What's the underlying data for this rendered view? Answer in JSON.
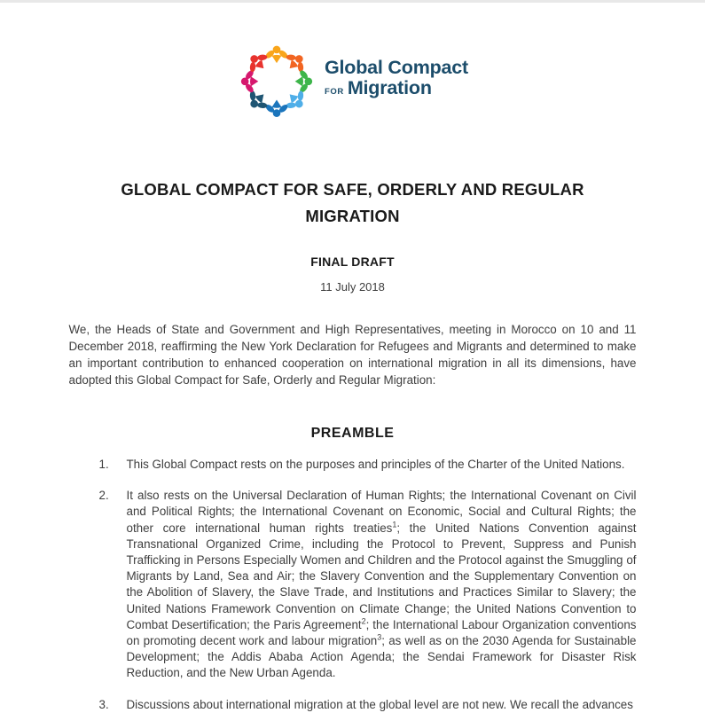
{
  "document": {
    "title_line1": "GLOBAL COMPACT FOR SAFE, ORDERLY AND REGULAR",
    "title_line2": "MIGRATION",
    "subtitle": "FINAL DRAFT",
    "date": "11 July 2018",
    "intro": "We, the Heads of State and Government and High Representatives, meeting in Morocco on 10 and 11 December 2018, reaffirming the New York Declaration for Refugees and Migrants and determined to make an important contribution to enhanced cooperation on international migration in all its dimensions, have adopted this Global Compact for Safe, Orderly and Regular Migration:",
    "section_heading": "PREAMBLE",
    "paragraphs": [
      {
        "number": "1.",
        "segments": [
          {
            "text": "This Global Compact rests on the purposes and principles of the Charter of the United Nations."
          }
        ]
      },
      {
        "number": "2.",
        "segments": [
          {
            "text": "It also rests on the Universal Declaration of Human Rights; the International Covenant on Civil and Political Rights; the International Covenant on Economic, Social and Cultural Rights; the other core international human rights treaties"
          },
          {
            "sup": "1"
          },
          {
            "text": "; the United Nations Convention against Transnational Organized Crime, including the Protocol to Prevent, Suppress and Punish Trafficking in Persons Especially Women and Children and the Protocol against the Smuggling of Migrants by Land, Sea and Air; the Slavery Convention and the Supplementary Convention on the Abolition of Slavery, the Slave Trade, and Institutions and Practices Similar to Slavery; the United Nations Framework Convention on Climate Change; the United Nations Convention to Combat Desertification; the Paris Agreement"
          },
          {
            "sup": "2"
          },
          {
            "text": "; the International Labour Organization conventions on promoting decent work and labour migration"
          },
          {
            "sup": "3"
          },
          {
            "text": "; as well as on the 2030 Agenda for Sustainable Development; the Addis Ababa Action Agenda; the Sendai Framework for Disaster Risk Reduction, and the New Urban Agenda."
          }
        ]
      },
      {
        "number": "3.",
        "segments": [
          {
            "text": "Discussions about international migration at the global level are not new. We recall the advances"
          }
        ]
      }
    ]
  },
  "logo": {
    "wordmark_line1": "Global Compact",
    "wordmark_prefix": "FOR",
    "wordmark_line2": "Migration",
    "wordmark_color": "#1c4d6b",
    "figure_colors": {
      "top": "#F9A51B",
      "top_right": "#F26522",
      "right": "#3DB54A",
      "bottom_right": "#4FAEE8",
      "bottom": "#1B75BC",
      "bottom_left": "#1F5573",
      "left": "#D6186E",
      "top_left": "#E8332E"
    }
  },
  "colors": {
    "body_text": "#3e3e3e",
    "heading_text": "#1a1a1a",
    "top_strip": "#e8e8e8"
  }
}
